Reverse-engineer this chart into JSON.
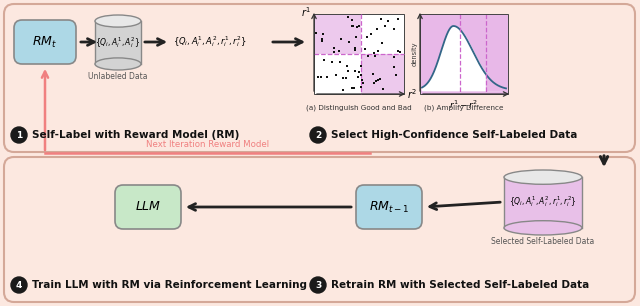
{
  "bg_color": "#fce8e0",
  "rm_box_color": "#add8e6",
  "db_color": "#d3d3d3",
  "llm_box_color": "#c8e8c8",
  "rm2_box_color": "#add8e6",
  "db2_color": "#e8c0e8",
  "arrow_color": "#222222",
  "feedback_arrow_color": "#f08080",
  "step_circle_color": "#1a1a1a",
  "step_text_color": "#ffffff",
  "label_color": "#111111",
  "panel_border": "#d4a898",
  "scatter_pink": "#e8b8e8",
  "density_pink": "#e8b8e8",
  "dashed_color": "#cc66cc",
  "step1_label": "Self-Label with Reward Model (RM)",
  "step2_label": "Select High-Confidence Self-Labeled Data",
  "step3_label": "Retrain RM with Selected Self-Labeled Data",
  "step4_label": "Train LLM with RM via Reinforcement Learning",
  "feedback_label": "Next Iteration Reward Model",
  "unlabeled_label": "Unlabeled Data",
  "selected_label": "Selected Self-Labeled Data",
  "scatter_caption": "(a) Distinguish Good and Bad",
  "density_caption": "(b) Amplify Difference"
}
